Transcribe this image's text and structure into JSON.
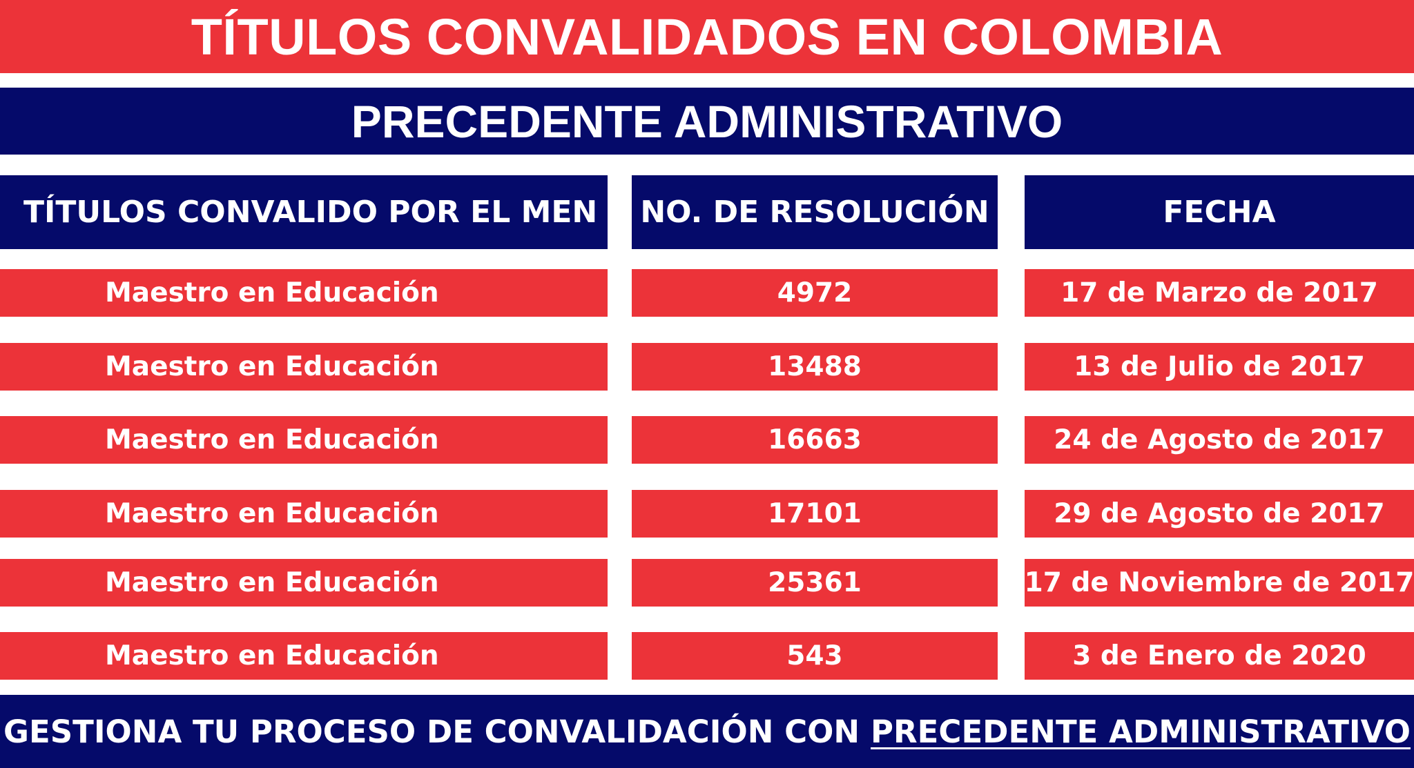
{
  "title": "TÍTULOS CONVALIDADOS EN COLOMBIA",
  "subtitle": "PRECEDENTE ADMINISTRATIVO",
  "table": {
    "headers": [
      "TÍTULOS CONVALIDO POR EL MEN",
      "NO. DE RESOLUCIÓN",
      "FECHA"
    ],
    "rows": [
      {
        "titulo": "Maestro en Educación",
        "resolucion": "4972",
        "fecha": "17 de Marzo de 2017"
      },
      {
        "titulo": "Maestro en Educación",
        "resolucion": "13488",
        "fecha": "13 de Julio de 2017"
      },
      {
        "titulo": "Maestro en Educación",
        "resolucion": "16663",
        "fecha": "24 de Agosto de 2017"
      },
      {
        "titulo": "Maestro en Educación",
        "resolucion": "17101",
        "fecha": "29 de Agosto de 2017"
      },
      {
        "titulo": "Maestro en Educación",
        "resolucion": "25361",
        "fecha": "17 de Noviembre de 2017"
      },
      {
        "titulo": "Maestro en Educación",
        "resolucion": "543",
        "fecha": "3 de Enero de 2020"
      }
    ]
  },
  "footer": {
    "text": "GESTIONA TU PROCESO DE CONVALIDACIÓN CON",
    "link": "PRECEDENTE ADMINISTRATIVO"
  },
  "colors": {
    "red": "#ec3339",
    "navy": "#050a6a",
    "white": "#ffffff"
  }
}
